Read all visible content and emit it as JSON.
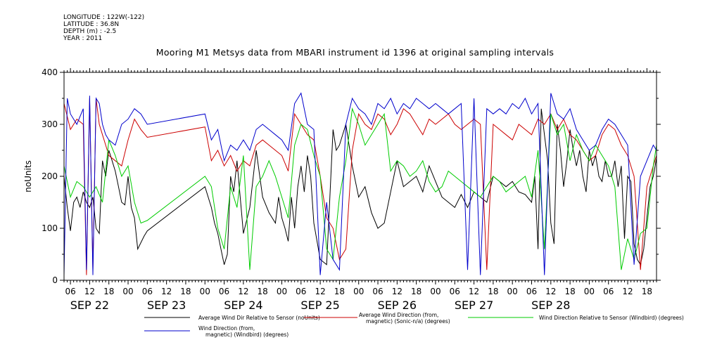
{
  "header": {
    "meta": [
      "LONGITUDE : 122W(-122)",
      "LATITUDE : 36.8N",
      "DEPTH (m) : -2.5",
      "YEAR : 2011"
    ],
    "title": "Mooring M1 Metsys data from MBARI instrument id 1396 at original sampling intervals"
  },
  "chart_data": {
    "type": "line",
    "title": "Mooring M1 Metsys data from MBARI instrument id 1396 at original sampling intervals",
    "ylabel": "noUnits",
    "xlabel": "",
    "ylim": [
      0,
      400
    ],
    "yticks": [
      0,
      100,
      200,
      300,
      400
    ],
    "x_units": "hours since SEP 22 00:00",
    "xlim": [
      4,
      189
    ],
    "hour_tick_labels": [
      "06",
      "12",
      "18",
      "00",
      "06",
      "12",
      "18",
      "00",
      "06",
      "12",
      "18",
      "00",
      "06",
      "12",
      "18",
      "00",
      "06",
      "12",
      "18",
      "00",
      "06",
      "12",
      "18",
      "00",
      "06",
      "12",
      "18",
      "00",
      "06",
      "12",
      "18"
    ],
    "hour_tick_positions": [
      6,
      12,
      18,
      24,
      30,
      36,
      42,
      48,
      54,
      60,
      66,
      72,
      78,
      84,
      90,
      96,
      102,
      108,
      114,
      120,
      126,
      132,
      138,
      144,
      150,
      156,
      162,
      168,
      174,
      180,
      186
    ],
    "day_labels": [
      {
        "text": "SEP 22",
        "x": 12
      },
      {
        "text": "SEP 23",
        "x": 36
      },
      {
        "text": "SEP 24",
        "x": 60
      },
      {
        "text": "SEP 25",
        "x": 84
      },
      {
        "text": "SEP 26",
        "x": 108
      },
      {
        "text": "SEP 27",
        "x": 132
      },
      {
        "text": "SEP 28",
        "x": 156
      }
    ],
    "grid": false,
    "legend_position": "bottom",
    "series": [
      {
        "name": "Average Wind Dir Relative to Sensor (noUnits)",
        "color": "#000000",
        "x": [
          4,
          5,
          6,
          7,
          8,
          9,
          10,
          11,
          12,
          13,
          14,
          15,
          16,
          17,
          18,
          19,
          20,
          21,
          22,
          23,
          24,
          25,
          26,
          27,
          29,
          30,
          48,
          50,
          51,
          52,
          53,
          54,
          55,
          56,
          57,
          58,
          60,
          62,
          64,
          66,
          68,
          70,
          71,
          72,
          73,
          74,
          75,
          76,
          77,
          78,
          79,
          80,
          81,
          82,
          84,
          86,
          87,
          88,
          89,
          90,
          92,
          94,
          96,
          98,
          100,
          102,
          104,
          106,
          108,
          110,
          112,
          114,
          116,
          118,
          120,
          122,
          124,
          126,
          128,
          130,
          132,
          134,
          136,
          138,
          140,
          142,
          144,
          146,
          148,
          150,
          151,
          152,
          153,
          154,
          155,
          156,
          157,
          158,
          159,
          160,
          161,
          162,
          163,
          164,
          165,
          166,
          167,
          168,
          169,
          170,
          171,
          172,
          173,
          174,
          175,
          176,
          177,
          178,
          179,
          180,
          181,
          182,
          183,
          184,
          185,
          186,
          187,
          188,
          189
        ],
        "y": [
          200,
          140,
          95,
          150,
          160,
          140,
          170,
          150,
          140,
          160,
          100,
          90,
          230,
          200,
          250,
          230,
          210,
          180,
          150,
          145,
          200,
          140,
          120,
          60,
          85,
          95,
          180,
          140,
          110,
          90,
          60,
          30,
          50,
          200,
          170,
          230,
          90,
          140,
          250,
          160,
          130,
          110,
          160,
          120,
          100,
          75,
          160,
          100,
          180,
          220,
          170,
          240,
          200,
          110,
          40,
          30,
          160,
          290,
          250,
          260,
          300,
          220,
          160,
          180,
          130,
          100,
          110,
          170,
          230,
          180,
          190,
          200,
          170,
          220,
          190,
          160,
          150,
          140,
          165,
          140,
          170,
          160,
          150,
          200,
          190,
          180,
          190,
          170,
          165,
          150,
          200,
          60,
          330,
          280,
          230,
          110,
          70,
          300,
          250,
          180,
          230,
          290,
          250,
          220,
          250,
          200,
          170,
          250,
          220,
          240,
          200,
          190,
          230,
          200,
          200,
          230,
          180,
          220,
          80,
          200,
          190,
          70,
          40,
          30,
          60,
          120,
          180,
          200,
          235
        ],
        "values_note": "approximate, read from plot"
      },
      {
        "name": "Average Wind Direction (from, magnetic) (Sonic-n/a) (degrees)",
        "color": "#cc0000",
        "x": [
          4,
          6,
          8,
          10,
          11,
          12,
          13,
          14,
          15,
          16,
          17,
          18,
          20,
          22,
          24,
          26,
          28,
          30,
          48,
          50,
          52,
          54,
          56,
          58,
          60,
          62,
          64,
          66,
          68,
          70,
          72,
          74,
          76,
          78,
          80,
          82,
          84,
          86,
          88,
          90,
          92,
          94,
          96,
          98,
          100,
          102,
          104,
          106,
          108,
          110,
          112,
          114,
          116,
          118,
          120,
          122,
          124,
          126,
          128,
          130,
          132,
          134,
          136,
          138,
          140,
          142,
          144,
          146,
          148,
          150,
          152,
          154,
          156,
          158,
          160,
          162,
          164,
          166,
          168,
          170,
          172,
          174,
          176,
          178,
          180,
          182,
          184,
          186,
          188,
          189
        ],
        "y": [
          340,
          290,
          310,
          300,
          10,
          350,
          20,
          350,
          300,
          280,
          260,
          240,
          230,
          220,
          270,
          310,
          290,
          275,
          295,
          230,
          250,
          220,
          240,
          210,
          230,
          220,
          260,
          270,
          260,
          250,
          240,
          210,
          320,
          300,
          280,
          270,
          200,
          120,
          100,
          40,
          60,
          250,
          320,
          300,
          290,
          320,
          310,
          280,
          300,
          330,
          320,
          300,
          280,
          310,
          300,
          310,
          320,
          300,
          290,
          300,
          310,
          300,
          20,
          300,
          290,
          280,
          270,
          300,
          290,
          280,
          310,
          300,
          320,
          290,
          310,
          280,
          270,
          250,
          230,
          240,
          280,
          300,
          290,
          260,
          240,
          200,
          20,
          180,
          220,
          240
        ],
        "values_note": "approximate, read from plot"
      },
      {
        "name": "Wind Direction Relative to Sensor (Windbird) (degrees)",
        "color": "#00cc00",
        "x": [
          4,
          6,
          8,
          10,
          12,
          14,
          16,
          18,
          20,
          22,
          24,
          26,
          28,
          30,
          48,
          50,
          52,
          54,
          56,
          58,
          60,
          62,
          64,
          66,
          68,
          70,
          72,
          74,
          76,
          78,
          80,
          82,
          84,
          86,
          88,
          90,
          92,
          94,
          96,
          98,
          100,
          102,
          104,
          106,
          108,
          110,
          112,
          114,
          116,
          118,
          120,
          122,
          124,
          126,
          128,
          130,
          132,
          134,
          136,
          138,
          140,
          142,
          144,
          146,
          148,
          150,
          152,
          154,
          156,
          158,
          160,
          162,
          164,
          166,
          168,
          170,
          172,
          174,
          176,
          178,
          180,
          182,
          184,
          186,
          188,
          189
        ],
        "y": [
          220,
          160,
          190,
          180,
          160,
          180,
          150,
          270,
          240,
          200,
          220,
          150,
          110,
          115,
          200,
          180,
          100,
          60,
          180,
          140,
          240,
          20,
          180,
          200,
          230,
          200,
          160,
          120,
          260,
          300,
          290,
          240,
          200,
          60,
          40,
          160,
          230,
          330,
          300,
          260,
          280,
          300,
          320,
          210,
          230,
          220,
          200,
          210,
          230,
          190,
          170,
          180,
          210,
          200,
          190,
          180,
          170,
          160,
          180,
          200,
          190,
          170,
          180,
          190,
          200,
          160,
          250,
          60,
          320,
          280,
          300,
          230,
          280,
          250,
          230,
          260,
          240,
          220,
          180,
          20,
          80,
          40,
          90,
          100,
          220,
          260
        ],
        "values_note": "approximate, read from plot"
      },
      {
        "name": "Wind Direction (from, magnetic) (Windbird) (degrees)",
        "color": "#0000cc",
        "x": [
          4,
          5,
          6,
          8,
          10,
          11,
          12,
          13,
          14,
          15,
          16,
          17,
          18,
          20,
          22,
          24,
          26,
          28,
          30,
          48,
          50,
          52,
          54,
          56,
          58,
          60,
          62,
          64,
          66,
          68,
          70,
          72,
          74,
          76,
          78,
          80,
          82,
          84,
          86,
          88,
          90,
          92,
          94,
          96,
          98,
          100,
          102,
          104,
          106,
          108,
          110,
          112,
          114,
          116,
          118,
          120,
          122,
          124,
          126,
          128,
          130,
          132,
          134,
          136,
          138,
          140,
          142,
          144,
          146,
          148,
          150,
          152,
          154,
          156,
          158,
          160,
          162,
          164,
          166,
          168,
          170,
          172,
          174,
          176,
          178,
          180,
          182,
          184,
          186,
          188,
          189
        ],
        "y": [
          10,
          350,
          320,
          300,
          330,
          20,
          355,
          10,
          350,
          340,
          300,
          280,
          270,
          260,
          300,
          310,
          330,
          320,
          300,
          320,
          270,
          290,
          230,
          260,
          250,
          270,
          250,
          290,
          300,
          290,
          280,
          270,
          250,
          340,
          360,
          300,
          290,
          10,
          150,
          40,
          20,
          300,
          350,
          330,
          320,
          300,
          340,
          330,
          350,
          320,
          340,
          330,
          350,
          340,
          330,
          340,
          330,
          320,
          330,
          340,
          20,
          350,
          10,
          330,
          320,
          330,
          320,
          340,
          330,
          350,
          320,
          340,
          10,
          360,
          320,
          310,
          330,
          290,
          270,
          250,
          260,
          290,
          310,
          300,
          280,
          260,
          30,
          200,
          230,
          260,
          250
        ],
        "values_note": "approximate, read from plot"
      }
    ]
  },
  "legend": {
    "items": [
      {
        "label": "Average Wind Dir Relative to Sensor (noUnits)",
        "color": "#000000"
      },
      {
        "label": "Average Wind Direction (from,\nmagnetic) (Sonic-n/a) (degrees)",
        "color": "#cc0000"
      },
      {
        "label": "Wind Direction Relative to Sensor (Windbird) (degrees)",
        "color": "#00cc00"
      },
      {
        "label": "Wind Direction (from,\nmagnetic) (Windbird) (degrees)",
        "color": "#0000cc"
      }
    ]
  }
}
